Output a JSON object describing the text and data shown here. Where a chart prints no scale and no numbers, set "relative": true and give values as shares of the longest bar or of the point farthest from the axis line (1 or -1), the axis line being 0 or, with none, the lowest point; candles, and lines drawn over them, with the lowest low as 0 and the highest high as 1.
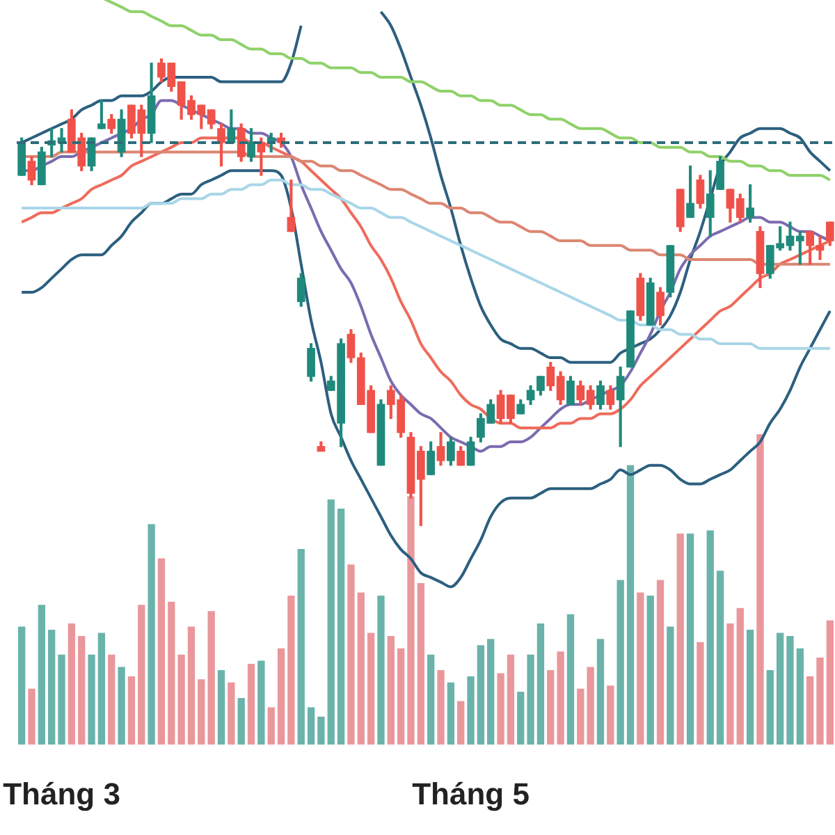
{
  "chart_data": [
    {
      "type": "candlestick",
      "relative": true,
      "categories": [
        null,
        null,
        null,
        null,
        "Tháng 3",
        null,
        null,
        null,
        null,
        null,
        null,
        null,
        null,
        null,
        null,
        null,
        null,
        null,
        null,
        null,
        null,
        null,
        null,
        null,
        null,
        null,
        null,
        null,
        null,
        null,
        null,
        null,
        null,
        null,
        null,
        null,
        null,
        null,
        null,
        null,
        null,
        null,
        null,
        null,
        null,
        "Tháng 5",
        null,
        null,
        null,
        null,
        null,
        null,
        null,
        null,
        null,
        null,
        null,
        null,
        null,
        null,
        null,
        null,
        null,
        null,
        null,
        null,
        null,
        null,
        null,
        null,
        null,
        null,
        null,
        null,
        null,
        null,
        null,
        null,
        null,
        null,
        null,
        null
      ],
      "ohlc": [
        [
          0.75,
          0.83,
          0.75,
          0.82
        ],
        [
          0.78,
          0.79,
          0.73,
          0.74
        ],
        [
          0.73,
          0.81,
          0.73,
          0.8
        ],
        [
          0.815,
          0.85,
          0.79,
          0.824
        ],
        [
          0.82,
          0.85,
          0.8,
          0.83
        ],
        [
          0.87,
          0.89,
          0.8,
          0.8
        ],
        [
          0.83,
          0.84,
          0.76,
          0.77
        ],
        [
          0.77,
          0.83,
          0.76,
          0.83
        ],
        [
          0.85,
          0.91,
          0.85,
          0.86
        ],
        [
          0.87,
          0.88,
          0.84,
          0.85
        ],
        [
          0.8,
          0.89,
          0.79,
          0.87
        ],
        [
          0.9,
          0.9,
          0.83,
          0.84
        ],
        [
          0.89,
          0.9,
          0.79,
          0.84
        ],
        [
          0.84,
          0.99,
          0.82,
          0.92
        ],
        [
          0.99,
          1.0,
          0.95,
          0.96
        ],
        [
          0.99,
          0.99,
          0.93,
          0.94
        ],
        [
          0.95,
          0.95,
          0.87,
          0.9
        ],
        [
          0.91,
          0.92,
          0.87,
          0.88
        ],
        [
          0.9,
          0.9,
          0.85,
          0.88
        ],
        [
          0.89,
          0.89,
          0.85,
          0.86
        ],
        [
          0.85,
          0.86,
          0.77,
          0.82
        ],
        [
          0.82,
          0.89,
          0.82,
          0.85
        ],
        [
          0.85,
          0.86,
          0.78,
          0.79
        ],
        [
          0.79,
          0.85,
          0.78,
          0.82
        ],
        [
          0.82,
          0.83,
          0.75,
          0.8
        ],
        [
          0.82,
          0.84,
          0.8,
          0.83
        ],
        [
          0.83,
          0.84,
          0.81,
          0.82
        ],
        [
          0.66,
          0.74,
          0.63,
          0.63
        ],
        [
          0.48,
          0.54,
          0.47,
          0.53
        ],
        [
          0.32,
          0.39,
          0.31,
          0.38
        ],
        [
          0.17,
          0.18,
          0.16,
          0.16
        ],
        [
          0.29,
          0.32,
          0.29,
          0.31
        ],
        [
          0.22,
          0.4,
          0.17,
          0.39
        ],
        [
          0.41,
          0.42,
          0.35,
          0.36
        ],
        [
          0.36,
          0.37,
          0.26,
          0.26
        ],
        [
          0.29,
          0.3,
          0.2,
          0.2
        ],
        [
          0.13,
          0.27,
          0.13,
          0.26
        ],
        [
          0.29,
          0.3,
          0.23,
          0.26
        ],
        [
          0.27,
          0.28,
          0.19,
          0.2
        ],
        [
          0.19,
          0.2,
          0.06,
          0.07
        ],
        [
          0.16,
          0.17,
          0,
          0.1
        ],
        [
          0.11,
          0.18,
          0.11,
          0.16
        ],
        [
          0.17,
          0.2,
          0.13,
          0.14
        ],
        [
          0.14,
          0.19,
          0.13,
          0.18
        ],
        [
          0.16,
          0.17,
          0.13,
          0.13
        ],
        [
          0.13,
          0.19,
          0.13,
          0.18
        ],
        [
          0.19,
          0.24,
          0.18,
          0.23
        ],
        [
          0.22,
          0.27,
          0.22,
          0.26
        ],
        [
          0.28,
          0.29,
          0.22,
          0.23
        ],
        [
          0.28,
          0.28,
          0.22,
          0.23
        ],
        [
          0.24,
          0.27,
          0.24,
          0.26
        ],
        [
          0.27,
          0.3,
          0.26,
          0.29
        ],
        [
          0.29,
          0.32,
          0.28,
          0.32
        ],
        [
          0.34,
          0.35,
          0.29,
          0.3
        ],
        [
          0.32,
          0.33,
          0.26,
          0.27
        ],
        [
          0.26,
          0.32,
          0.26,
          0.31
        ],
        [
          0.3,
          0.31,
          0.26,
          0.27
        ],
        [
          0.29,
          0.3,
          0.25,
          0.26
        ],
        [
          0.26,
          0.31,
          0.25,
          0.3
        ],
        [
          0.29,
          0.3,
          0.25,
          0.26
        ],
        [
          0.27,
          0.34,
          0.17,
          0.32
        ],
        [
          0.34,
          0.46,
          0.34,
          0.46
        ],
        [
          0.53,
          0.54,
          0.44,
          0.45
        ],
        [
          0.43,
          0.53,
          0.43,
          0.52
        ],
        [
          0.5,
          0.51,
          0.43,
          0.45
        ],
        [
          0.5,
          0.6,
          0.49,
          0.6
        ],
        [
          0.72,
          0.72,
          0.63,
          0.64
        ],
        [
          0.66,
          0.77,
          0.66,
          0.69
        ],
        [
          0.74,
          0.75,
          0.68,
          0.69
        ],
        [
          0.66,
          0.76,
          0.62,
          0.71
        ],
        [
          0.72,
          0.79,
          0.72,
          0.78
        ],
        [
          0.72,
          0.72,
          0.65,
          0.68
        ],
        [
          0.7,
          0.71,
          0.65,
          0.66
        ],
        [
          0.66,
          0.73,
          0.65,
          0.68
        ],
        [
          0.63,
          0.64,
          0.51,
          0.54
        ],
        [
          0.54,
          0.6,
          0.53,
          0.6
        ],
        [
          0.595,
          0.64,
          0.59,
          0.604
        ],
        [
          0.6,
          0.65,
          0.59,
          0.62
        ],
        [
          0.61,
          0.63,
          0.56,
          0.62
        ],
        [
          0.63,
          0.63,
          0.56,
          0.6
        ],
        [
          0.6,
          0.62,
          0.57,
          0.59
        ],
        [
          0.65,
          0.65,
          0.6,
          0.61
        ]
      ],
      "colors": [
        "#1f8a7c",
        "#f0524a",
        "#1f8a7c",
        "#1f8a7c",
        "#1f8a7c",
        "#f0524a",
        "#f0524a",
        "#1f8a7c",
        "#1f8a7c",
        "#f0524a",
        "#1f8a7c",
        "#f0524a",
        "#f0524a",
        "#1f8a7c",
        "#f0524a",
        "#f0524a",
        "#f0524a",
        "#f0524a",
        "#f0524a",
        "#f0524a",
        "#f0524a",
        "#1f8a7c",
        "#f0524a",
        "#1f8a7c",
        "#f0524a",
        "#1f8a7c",
        "#f0524a",
        "#f0524a",
        "#1f8a7c",
        "#1f8a7c",
        "#f0524a",
        "#1f8a7c",
        "#1f8a7c",
        "#f0524a",
        "#f0524a",
        "#f0524a",
        "#1f8a7c",
        "#f0524a",
        "#f0524a",
        "#f0524a",
        "#f0524a",
        "#1f8a7c",
        "#f0524a",
        "#1f8a7c",
        "#f0524a",
        "#1f8a7c",
        "#1f8a7c",
        "#1f8a7c",
        "#f0524a",
        "#f0524a",
        "#1f8a7c",
        "#1f8a7c",
        "#1f8a7c",
        "#f0524a",
        "#f0524a",
        "#1f8a7c",
        "#f0524a",
        "#f0524a",
        "#1f8a7c",
        "#f0524a",
        "#1f8a7c",
        "#1f8a7c",
        "#f0524a",
        "#1f8a7c",
        "#f0524a",
        "#1f8a7c",
        "#f0524a",
        "#1f8a7c",
        "#f0524a",
        "#1f8a7c",
        "#1f8a7c",
        "#f0524a",
        "#f0524a",
        "#1f8a7c",
        "#f0524a",
        "#1f8a7c",
        "#1f8a7c",
        "#1f8a7c",
        "#1f8a7c",
        "#f0524a",
        "#f0524a",
        "#f0524a"
      ],
      "series": [
        {
          "type": "line",
          "color": "#8fd16a",
          "values": [
            null,
            null,
            null,
            null,
            null,
            null,
            null,
            null,
            1.13,
            1.12,
            1.11,
            1.1,
            1.1,
            1.09,
            1.08,
            1.07,
            1.07,
            1.06,
            1.05,
            1.05,
            1.04,
            1.04,
            1.03,
            1.02,
            1.02,
            1.01,
            1.01,
            1.0,
            1.0,
            0.99,
            0.99,
            0.98,
            0.98,
            0.98,
            0.97,
            0.97,
            0.96,
            0.96,
            0.96,
            0.95,
            0.95,
            0.94,
            0.93,
            0.93,
            0.92,
            0.92,
            0.91,
            0.91,
            0.9,
            0.9,
            0.89,
            0.88,
            0.88,
            0.87,
            0.87,
            0.86,
            0.85,
            0.85,
            0.85,
            0.84,
            0.83,
            0.83,
            0.82,
            0.82,
            0.81,
            0.81,
            0.81,
            0.8,
            0.8,
            0.79,
            0.79,
            0.78,
            0.78,
            0.77,
            0.77,
            0.76,
            0.76,
            0.75,
            0.75,
            0.75,
            0.75,
            0.74
          ]
        },
        {
          "type": "line",
          "color": "#a9d6e8",
          "values": [
            0.68,
            0.68,
            0.68,
            0.68,
            0.68,
            0.68,
            0.68,
            0.68,
            0.68,
            0.68,
            0.68,
            0.68,
            0.68,
            0.69,
            0.69,
            0.69,
            0.7,
            0.7,
            0.7,
            0.71,
            0.71,
            0.72,
            0.72,
            0.73,
            0.73,
            0.74,
            0.74,
            0.73,
            0.73,
            0.72,
            0.72,
            0.71,
            0.7,
            0.69,
            0.68,
            0.68,
            0.67,
            0.66,
            0.66,
            0.65,
            0.64,
            0.63,
            0.62,
            0.61,
            0.6,
            0.59,
            0.58,
            0.57,
            0.56,
            0.55,
            0.54,
            0.53,
            0.52,
            0.51,
            0.5,
            0.49,
            0.48,
            0.47,
            0.46,
            0.45,
            0.44,
            0.44,
            0.43,
            0.43,
            0.42,
            0.42,
            0.41,
            0.41,
            0.4,
            0.4,
            0.39,
            0.39,
            0.39,
            0.39,
            0.38,
            0.38,
            0.38,
            0.38,
            0.38,
            0.38,
            0.38,
            0.38
          ]
        },
        {
          "type": "line",
          "color": "#dc8672",
          "values": [
            0.79,
            0.79,
            0.79,
            0.79,
            0.8,
            0.8,
            0.8,
            0.8,
            0.8,
            0.8,
            0.8,
            0.8,
            0.8,
            0.8,
            0.8,
            0.8,
            0.8,
            0.8,
            0.8,
            0.8,
            0.8,
            0.8,
            0.8,
            0.79,
            0.79,
            0.79,
            0.79,
            0.79,
            0.78,
            0.78,
            0.77,
            0.77,
            0.76,
            0.76,
            0.75,
            0.74,
            0.73,
            0.72,
            0.72,
            0.71,
            0.7,
            0.69,
            0.69,
            0.68,
            0.68,
            0.67,
            0.67,
            0.66,
            0.65,
            0.65,
            0.64,
            0.63,
            0.63,
            0.62,
            0.61,
            0.61,
            0.61,
            0.6,
            0.6,
            0.6,
            0.6,
            0.59,
            0.59,
            0.59,
            0.58,
            0.58,
            0.58,
            0.57,
            0.57,
            0.57,
            0.57,
            0.57,
            0.57,
            0.57,
            0.56,
            0.56,
            0.56,
            0.56,
            0.56,
            0.56,
            0.56,
            0.56
          ]
        },
        {
          "type": "line",
          "color": "#ef6b5b",
          "values": [
            0.65,
            0.66,
            0.67,
            0.67,
            0.68,
            0.69,
            0.7,
            0.72,
            0.73,
            0.74,
            0.75,
            0.77,
            0.78,
            0.79,
            0.8,
            0.81,
            0.82,
            0.82,
            0.83,
            0.83,
            0.83,
            0.83,
            0.83,
            0.82,
            0.82,
            0.81,
            0.8,
            0.79,
            0.78,
            0.76,
            0.74,
            0.72,
            0.7,
            0.67,
            0.64,
            0.6,
            0.57,
            0.53,
            0.48,
            0.44,
            0.39,
            0.36,
            0.33,
            0.31,
            0.28,
            0.26,
            0.25,
            0.23,
            0.22,
            0.22,
            0.21,
            0.21,
            0.21,
            0.21,
            0.22,
            0.22,
            0.23,
            0.23,
            0.24,
            0.24,
            0.25,
            0.27,
            0.3,
            0.32,
            0.34,
            0.36,
            0.38,
            0.4,
            0.42,
            0.44,
            0.46,
            0.47,
            0.49,
            0.51,
            0.53,
            0.54,
            0.56,
            0.57,
            0.58,
            0.59,
            0.6,
            0.61
          ]
        },
        {
          "type": "line",
          "color": "#7b6bb0",
          "values": [
            0.76,
            0.76,
            0.77,
            0.78,
            0.79,
            0.79,
            0.8,
            0.81,
            0.82,
            0.83,
            0.84,
            0.85,
            0.87,
            0.88,
            0.91,
            0.91,
            0.9,
            0.89,
            0.88,
            0.87,
            0.86,
            0.85,
            0.85,
            0.84,
            0.84,
            0.83,
            0.82,
            0.79,
            0.73,
            0.68,
            0.63,
            0.59,
            0.55,
            0.52,
            0.47,
            0.41,
            0.36,
            0.31,
            0.28,
            0.26,
            0.24,
            0.23,
            0.21,
            0.19,
            0.18,
            0.17,
            0.16,
            0.17,
            0.17,
            0.18,
            0.18,
            0.19,
            0.21,
            0.23,
            0.25,
            0.26,
            0.26,
            0.27,
            0.28,
            0.29,
            0.3,
            0.33,
            0.37,
            0.41,
            0.46,
            0.5,
            0.55,
            0.58,
            0.6,
            0.62,
            0.63,
            0.64,
            0.65,
            0.66,
            0.66,
            0.65,
            0.65,
            0.64,
            0.63,
            0.63,
            0.62,
            0.61
          ]
        },
        {
          "type": "line",
          "color": "#2c5f7f",
          "values": [
            0.82,
            0.83,
            0.84,
            0.85,
            0.86,
            0.87,
            0.89,
            0.9,
            0.91,
            0.91,
            0.92,
            0.92,
            0.92,
            0.93,
            0.95,
            0.96,
            0.96,
            0.96,
            0.96,
            0.96,
            0.95,
            0.95,
            0.95,
            0.95,
            0.95,
            0.95,
            0.95,
            0.99,
            1.07,
            null,
            null,
            null,
            null,
            null,
            null,
            null,
            1.1,
            1.07,
            1.02,
            0.96,
            0.9,
            0.83,
            0.75,
            0.68,
            0.6,
            0.53,
            0.47,
            0.43,
            0.4,
            0.39,
            0.38,
            0.38,
            0.37,
            0.36,
            0.36,
            0.35,
            0.35,
            0.35,
            0.35,
            0.35,
            0.37,
            0.38,
            0.39,
            0.4,
            0.42,
            0.45,
            0.5,
            0.57,
            0.63,
            0.7,
            0.77,
            0.8,
            0.83,
            0.84,
            0.85,
            0.85,
            0.85,
            0.84,
            0.83,
            0.8,
            0.78,
            0.76
          ]
        },
        {
          "type": "line",
          "color": "#2c5f7f",
          "values": [
            0.5,
            0.5,
            0.51,
            0.53,
            0.55,
            0.57,
            0.58,
            0.58,
            0.58,
            0.6,
            0.62,
            0.65,
            0.67,
            0.69,
            0.69,
            0.7,
            0.71,
            0.71,
            0.73,
            0.74,
            0.75,
            0.76,
            0.76,
            0.76,
            0.76,
            0.76,
            0.75,
            0.68,
            0.56,
            0.44,
            0.35,
            0.24,
            0.19,
            0.14,
            0.1,
            0.06,
            0.02,
            -0.02,
            -0.05,
            -0.07,
            -0.1,
            -0.11,
            -0.12,
            -0.13,
            -0.11,
            -0.07,
            -0.03,
            0.02,
            0.05,
            0.06,
            0.06,
            0.06,
            0.07,
            0.08,
            0.08,
            0.08,
            0.08,
            0.08,
            0.09,
            0.1,
            0.12,
            0.11,
            0.12,
            0.13,
            0.13,
            0.12,
            0.1,
            0.09,
            0.09,
            0.1,
            0.11,
            0.12,
            0.14,
            0.16,
            0.18,
            0.22,
            0.25,
            0.29,
            0.34,
            0.38,
            0.42,
            0.46
          ]
        }
      ],
      "ref_lines": [
        {
          "axis": "y",
          "value": 0.82,
          "color": "#2e6b7a",
          "line_style": "dashed"
        }
      ]
    },
    {
      "type": "bar",
      "relative": true,
      "categories": [
        null,
        null,
        null,
        null,
        null,
        null,
        null,
        null,
        null,
        null,
        null,
        null,
        null,
        null,
        null,
        null,
        null,
        null,
        null,
        null,
        null,
        null,
        null,
        null,
        null,
        null,
        null,
        null,
        null,
        null,
        null,
        null,
        null,
        null,
        null,
        null,
        null,
        null,
        null,
        null,
        null,
        null,
        null,
        null,
        null,
        null,
        null,
        null,
        null,
        null,
        null,
        null,
        null,
        null,
        null,
        null,
        null,
        null,
        null,
        null,
        null,
        null,
        null,
        null,
        null,
        null,
        null,
        null,
        null,
        null,
        null,
        null,
        null,
        null,
        null,
        null,
        null,
        null,
        null,
        null,
        null,
        null
      ],
      "values": [
        0.38,
        0.18,
        0.45,
        0.37,
        0.29,
        0.39,
        0.35,
        0.29,
        0.36,
        0.29,
        0.25,
        0.22,
        0.45,
        0.71,
        0.6,
        0.46,
        0.29,
        0.38,
        0.21,
        0.43,
        0.24,
        0.2,
        0.15,
        0.26,
        0.27,
        0.12,
        0.31,
        0.48,
        0.63,
        0.12,
        0.09,
        0.79,
        0.76,
        0.58,
        0.49,
        0.36,
        0.48,
        0.35,
        0.31,
        0.8,
        0.52,
        0.29,
        0.24,
        0.2,
        0.14,
        0.22,
        0.32,
        0.34,
        0.23,
        0.29,
        0.17,
        0.29,
        0.39,
        0.24,
        0.3,
        0.42,
        0.18,
        0.25,
        0.34,
        0.19,
        0.53,
        0.9,
        0.49,
        0.48,
        0.53,
        0.38,
        0.68,
        0.68,
        0.33,
        0.69,
        0.56,
        0.39,
        0.44,
        0.37,
        1,
        0.24,
        0.36,
        0.35,
        0.31,
        0.22,
        0.28,
        0.4
      ],
      "colors": [
        "#6ab3aa",
        "#e9979b",
        "#6ab3aa",
        "#6ab3aa",
        "#6ab3aa",
        "#e9979b",
        "#e9979b",
        "#6ab3aa",
        "#6ab3aa",
        "#e9979b",
        "#6ab3aa",
        "#e9979b",
        "#e9979b",
        "#6ab3aa",
        "#e9979b",
        "#e9979b",
        "#e9979b",
        "#e9979b",
        "#e9979b",
        "#e9979b",
        "#6ab3aa",
        "#e9979b",
        "#6ab3aa",
        "#e9979b",
        "#6ab3aa",
        "#e9979b",
        "#e9979b",
        "#e9979b",
        "#6ab3aa",
        "#6ab3aa",
        "#6ab3aa",
        "#6ab3aa",
        "#6ab3aa",
        "#e9979b",
        "#e9979b",
        "#e9979b",
        "#6ab3aa",
        "#e9979b",
        "#e9979b",
        "#e9979b",
        "#e9979b",
        "#6ab3aa",
        "#e9979b",
        "#6ab3aa",
        "#e9979b",
        "#6ab3aa",
        "#6ab3aa",
        "#6ab3aa",
        "#e9979b",
        "#e9979b",
        "#6ab3aa",
        "#6ab3aa",
        "#6ab3aa",
        "#e9979b",
        "#e9979b",
        "#6ab3aa",
        "#e9979b",
        "#e9979b",
        "#6ab3aa",
        "#e9979b",
        "#6ab3aa",
        "#6ab3aa",
        "#e9979b",
        "#6ab3aa",
        "#e9979b",
        "#6ab3aa",
        "#e9979b",
        "#6ab3aa",
        "#e9979b",
        "#6ab3aa",
        "#6ab3aa",
        "#e9979b",
        "#e9979b",
        "#6ab3aa",
        "#e9979b",
        "#6ab3aa",
        "#6ab3aa",
        "#6ab3aa",
        "#6ab3aa",
        "#e9979b",
        "#e9979b",
        "#e9979b"
      ]
    }
  ]
}
